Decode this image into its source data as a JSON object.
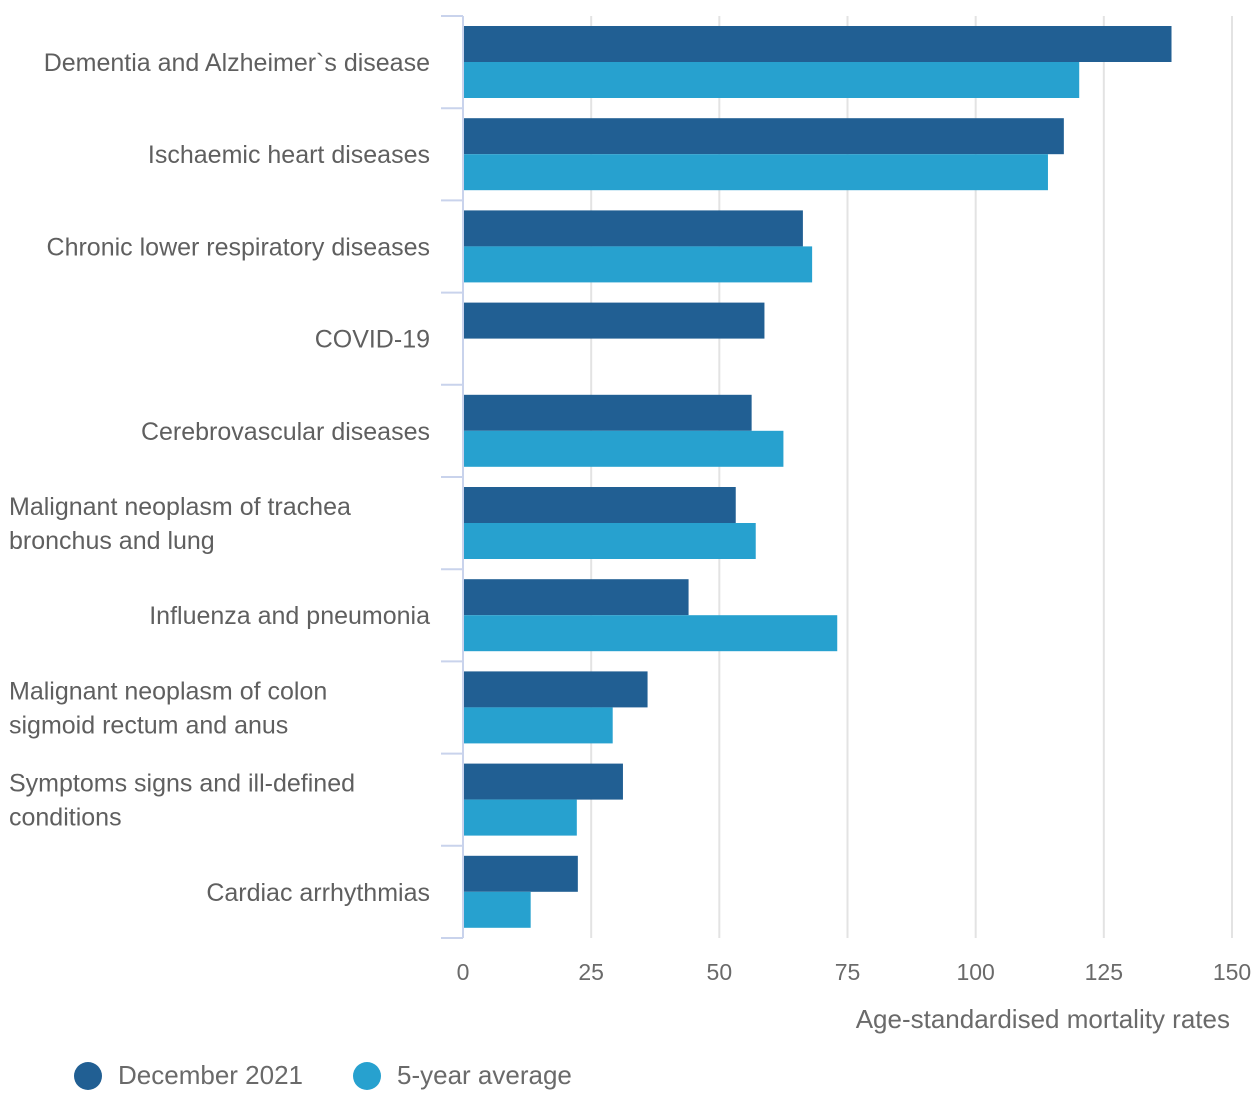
{
  "chart_data": {
    "type": "bar",
    "orientation": "horizontal",
    "title": "",
    "xlabel": "Age-standardised mortality rates",
    "ylabel": "",
    "xlim": [
      0,
      150
    ],
    "x_ticks": [
      0,
      25,
      50,
      75,
      100,
      125,
      150
    ],
    "grid": "vertical",
    "categories": [
      [
        "Dementia and Alzheimer`s disease"
      ],
      [
        "Ischaemic heart diseases"
      ],
      [
        "Chronic lower respiratory diseases"
      ],
      [
        "COVID-19"
      ],
      [
        "Cerebrovascular diseases"
      ],
      [
        "Malignant neoplasm of trachea",
        "bronchus and lung"
      ],
      [
        "Influenza and pneumonia"
      ],
      [
        "Malignant neoplasm of colon",
        "sigmoid rectum and anus"
      ],
      [
        "Symptoms signs and ill-defined",
        "conditions"
      ],
      [
        "Cardiac arrhythmias"
      ]
    ],
    "series": [
      {
        "name": "December 2021",
        "color": "#215f93",
        "values": [
          138.2,
          117.2,
          66.3,
          58.8,
          56.3,
          53.2,
          44.0,
          36.0,
          31.2,
          22.4
        ]
      },
      {
        "name": "5-year average",
        "color": "#27a1cf",
        "values": [
          120.2,
          114.1,
          68.1,
          null,
          62.5,
          57.1,
          73.0,
          29.2,
          22.2,
          13.2
        ]
      }
    ],
    "legend_position": "bottom-left"
  }
}
